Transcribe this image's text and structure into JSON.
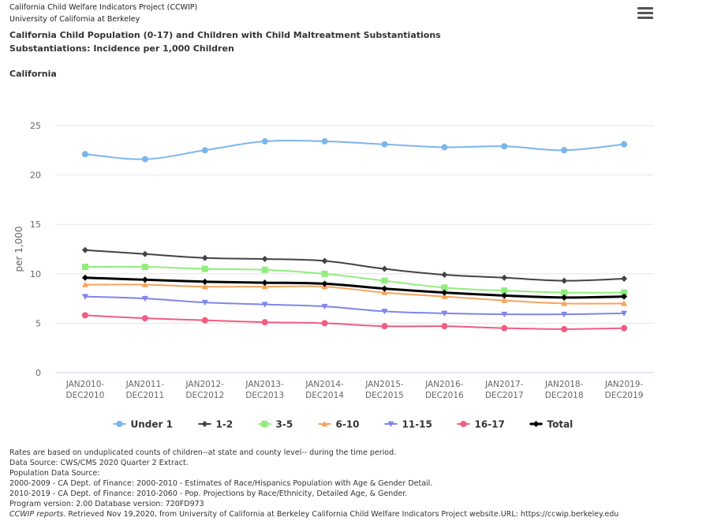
{
  "header": {
    "line1": "California Child Welfare Indicators Project (CCWIP)",
    "line2": "University of California at Berkeley"
  },
  "menu_icon": "hamburger-menu-icon",
  "title": {
    "line1": "California Child Population (0-17) and Children with Child Maltreatment Substantiations",
    "line2": "Substantiations: Incidence per 1,000 Children"
  },
  "subtitle": "California",
  "chart_data": {
    "type": "line",
    "ylabel": "per 1,000",
    "xlabel": "",
    "ylim": [
      0,
      25
    ],
    "yticks": [
      0,
      5,
      10,
      15,
      20,
      25
    ],
    "grid": true,
    "legend_position": "bottom-center",
    "categories": [
      [
        "JAN2010-",
        "DEC2010"
      ],
      [
        "JAN2011-",
        "DEC2011"
      ],
      [
        "JAN2012-",
        "DEC2012"
      ],
      [
        "JAN2013-",
        "DEC2013"
      ],
      [
        "JAN2014-",
        "DEC2014"
      ],
      [
        "JAN2015-",
        "DEC2015"
      ],
      [
        "JAN2016-",
        "DEC2016"
      ],
      [
        "JAN2017-",
        "DEC2017"
      ],
      [
        "JAN2018-",
        "DEC2018"
      ],
      [
        "JAN2019-",
        "DEC2019"
      ]
    ],
    "series": [
      {
        "name": "Under 1",
        "color": "#7cb5ec",
        "marker": "circle",
        "values": [
          22.1,
          21.6,
          22.5,
          23.4,
          23.4,
          23.1,
          22.8,
          22.9,
          22.5,
          23.1
        ]
      },
      {
        "name": "1-2",
        "color": "#434348",
        "marker": "diamond",
        "values": [
          12.4,
          12.0,
          11.6,
          11.5,
          11.3,
          10.5,
          9.9,
          9.6,
          9.3,
          9.5
        ]
      },
      {
        "name": "3-5",
        "color": "#90ed7d",
        "marker": "square",
        "values": [
          10.7,
          10.7,
          10.5,
          10.4,
          10.0,
          9.3,
          8.6,
          8.3,
          8.1,
          8.1
        ]
      },
      {
        "name": "6-10",
        "color": "#f7a35c",
        "marker": "triangle",
        "values": [
          8.9,
          8.9,
          8.7,
          8.7,
          8.7,
          8.1,
          7.7,
          7.3,
          7.0,
          7.0
        ]
      },
      {
        "name": "11-15",
        "color": "#8085e9",
        "marker": "triangle-down",
        "values": [
          7.7,
          7.5,
          7.1,
          6.9,
          6.7,
          6.2,
          6.0,
          5.9,
          5.9,
          6.0
        ]
      },
      {
        "name": "16-17",
        "color": "#f15c80",
        "marker": "circle",
        "values": [
          5.8,
          5.5,
          5.3,
          5.1,
          5.0,
          4.7,
          4.7,
          4.5,
          4.4,
          4.5
        ]
      },
      {
        "name": "Total",
        "color": "#000000",
        "marker": "diamond",
        "thick": true,
        "values": [
          9.6,
          9.4,
          9.2,
          9.1,
          9.0,
          8.5,
          8.1,
          7.8,
          7.6,
          7.7
        ]
      }
    ]
  },
  "footer": {
    "line1": "Rates are based on unduplicated counts of children--at state and county level-- during the time period.",
    "line2": "Data Source: CWS/CMS 2020 Quarter 2 Extract.",
    "line3": "Population Data Source:",
    "line4": "2000-2009 - CA Dept. of Finance: 2000-2010 - Estimates of Race/Hispanics Population with Age & Gender Detail.",
    "line5": "2010-2019 - CA Dept. of Finance: 2010-2060 - Pop. Projections by Race/Ethnicity, Detailed Age, & Gender.",
    "line6": "Program version: 2.00 Database version: 720FD973",
    "citation_italic": "CCWIP reports",
    "citation_rest": ". Retrieved Nov 19,2020, from University of California at Berkeley California Child Welfare Indicators Project website.URL: https://ccwip.berkeley.edu"
  }
}
